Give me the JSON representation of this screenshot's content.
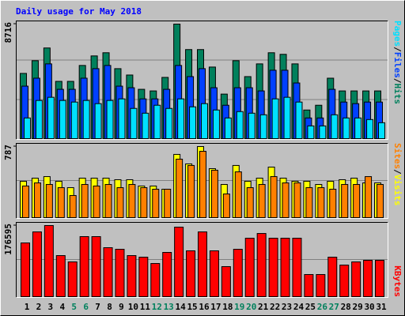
{
  "chart_data": [
    {
      "type": "bar",
      "title": "Daily usage for May 2018",
      "legend_separator": "/",
      "ylim": [
        0,
        8716
      ],
      "yticks": [
        8716
      ],
      "series": [
        {
          "name": "Hits",
          "color": "#00805c",
          "values": [
            4989,
            5950,
            6912,
            4388,
            4388,
            5590,
            6311,
            6551,
            5349,
            4868,
            3787,
            3666,
            4688,
            8716,
            6792,
            6792,
            5469,
            3426,
            5950,
            4748,
            5710,
            6551,
            6431,
            5710,
            2224,
            2584,
            4628,
            3666,
            3666,
            3666,
            3666
          ]
        },
        {
          "name": "Files",
          "color": "#0040ff",
          "values": [
            4027,
            4628,
            5710,
            3787,
            3787,
            4628,
            5349,
            5590,
            4027,
            3907,
            3065,
            3065,
            3787,
            5590,
            4748,
            5349,
            3907,
            2584,
            3907,
            3907,
            3666,
            5229,
            5229,
            4267,
            1623,
            1623,
            3787,
            2825,
            2705,
            2825,
            2825
          ]
        },
        {
          "name": "Pages",
          "color": "#00e0ff",
          "values": [
            1623,
            2945,
            3185,
            2945,
            2825,
            2945,
            2705,
            2945,
            3065,
            2344,
            1983,
            2584,
            2344,
            3065,
            2464,
            2705,
            2224,
            1623,
            2104,
            1983,
            1863,
            3065,
            3185,
            2825,
            1022,
            1022,
            1863,
            1623,
            1623,
            1503,
            1262
          ]
        }
      ]
    },
    {
      "type": "bar",
      "legend_separator": "/",
      "ylim": [
        0,
        787
      ],
      "yticks": [
        787
      ],
      "series": [
        {
          "name": "Visits",
          "color": "#ffff00",
          "values": [
            407,
            441,
            458,
            407,
            337,
            441,
            441,
            441,
            424,
            424,
            355,
            355,
            320,
            701,
            597,
            787,
            545,
            372,
            580,
            407,
            441,
            562,
            441,
            407,
            407,
            372,
            407,
            424,
            441,
            389,
            389
          ]
        },
        {
          "name": "Sites",
          "color": "#ff8000",
          "values": [
            355,
            389,
            372,
            337,
            251,
            372,
            355,
            372,
            337,
            372,
            337,
            320,
            320,
            649,
            580,
            735,
            528,
            268,
            510,
            337,
            372,
            458,
            389,
            389,
            337,
            337,
            320,
            372,
            372,
            458,
            372
          ]
        }
      ]
    },
    {
      "type": "bar",
      "ylim": [
        0,
        176595
      ],
      "yticks": [
        176595
      ],
      "categories": [
        "1",
        "2",
        "3",
        "4",
        "5",
        "6",
        "7",
        "8",
        "9",
        "10",
        "11",
        "12",
        "13",
        "14",
        "15",
        "16",
        "17",
        "18",
        "19",
        "20",
        "21",
        "22",
        "23",
        "24",
        "25",
        "26",
        "27",
        "28",
        "29",
        "30",
        "31"
      ],
      "category_colors": [
        "#000000",
        "#000000",
        "#000000",
        "#000000",
        "#00805c",
        "#00805c",
        "#000000",
        "#000000",
        "#000000",
        "#000000",
        "#000000",
        "#00805c",
        "#00805c",
        "#000000",
        "#000000",
        "#000000",
        "#000000",
        "#000000",
        "#00805c",
        "#00805c",
        "#000000",
        "#000000",
        "#000000",
        "#000000",
        "#000000",
        "#00805c",
        "#00805c",
        "#000000",
        "#000000",
        "#000000",
        "#000000"
      ],
      "series": [
        {
          "name": "KBytes",
          "color": "#ff0000",
          "values": [
            133900,
            161000,
            176595,
            102800,
            87300,
            149400,
            149400,
            122200,
            118300,
            102800,
            98900,
            83400,
            110600,
            172700,
            114500,
            161000,
            114500,
            75700,
            118300,
            145500,
            157100,
            145500,
            145500,
            145500,
            56300,
            56300,
            98900,
            79500,
            87300,
            91200,
            91200
          ]
        }
      ]
    }
  ]
}
